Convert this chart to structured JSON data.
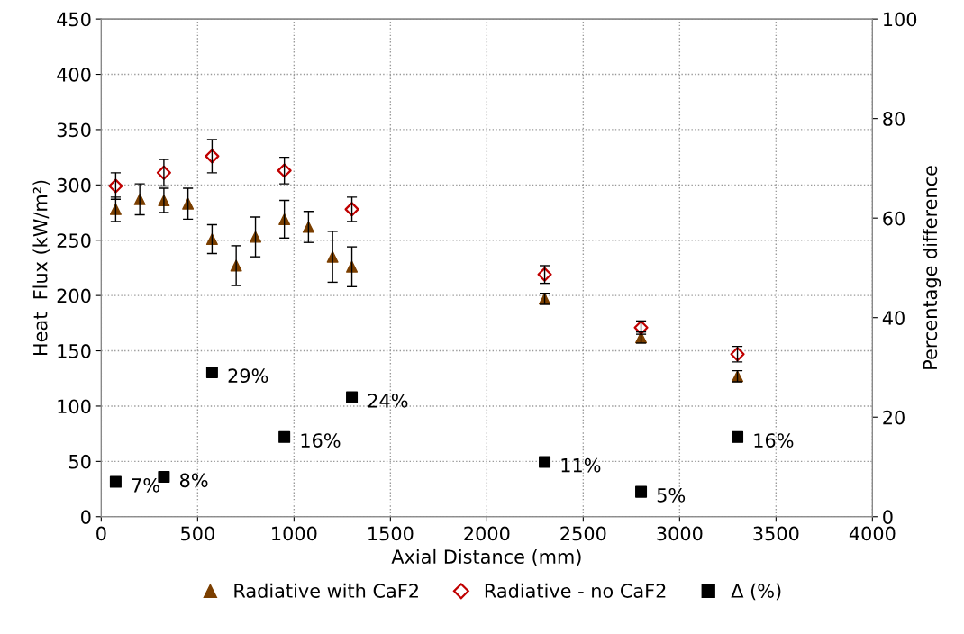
{
  "chart_data": {
    "type": "scatter",
    "xlabel": "Axial Distance (mm)",
    "ylabel": "Heat  Flux (kW/m²)",
    "y2label": "Percentage difference",
    "xlim": [
      0,
      4000
    ],
    "xticks": [
      0,
      500,
      1000,
      1500,
      2000,
      2500,
      3000,
      3500,
      4000
    ],
    "ylim": [
      0,
      450
    ],
    "yticks": [
      0,
      50,
      100,
      150,
      200,
      250,
      300,
      350,
      400,
      450
    ],
    "y2lim": [
      0,
      100
    ],
    "y2ticks": [
      0,
      20,
      40,
      60,
      80,
      100
    ],
    "grid": true,
    "legend": "bottom",
    "series": [
      {
        "name": "Radiative with CaF2",
        "color": "#7b3f00",
        "marker": "triangle",
        "x": [
          75,
          200,
          325,
          450,
          575,
          700,
          800,
          950,
          1075,
          1200,
          1300,
          2300,
          2800,
          3300
        ],
        "values": [
          278,
          287,
          286,
          283,
          251,
          227,
          253,
          269,
          262,
          235,
          226,
          197,
          162,
          127
        ],
        "errors": [
          11,
          14,
          11,
          14,
          13,
          18,
          18,
          17,
          14,
          23,
          18,
          5,
          5,
          5
        ]
      },
      {
        "name": "Radiative - no CaF2",
        "color": "#c00000",
        "marker": "diamond",
        "x": [
          75,
          325,
          575,
          950,
          1300,
          2300,
          2800,
          3300
        ],
        "values": [
          299,
          311,
          326,
          313,
          278,
          219,
          171,
          147
        ],
        "errors": [
          12,
          12,
          15,
          12,
          11,
          8,
          6,
          7
        ]
      },
      {
        "name": "Δ (%)",
        "color": "#000000",
        "marker": "square",
        "axis": "y2",
        "x": [
          75,
          325,
          575,
          950,
          1300,
          2300,
          2800,
          3300
        ],
        "values": [
          7,
          8,
          29,
          16,
          24,
          11,
          5,
          16
        ],
        "value_labels": [
          "7%",
          "8%",
          "29%",
          "16%",
          "24%",
          "11%",
          "5%",
          "16%"
        ]
      }
    ]
  }
}
